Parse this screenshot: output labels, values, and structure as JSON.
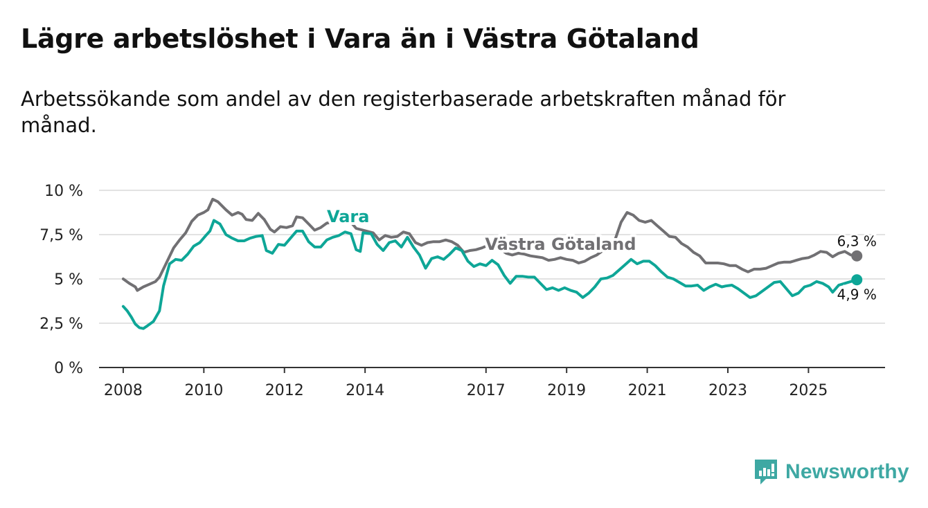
{
  "title": "Lägre arbetslöshet i Vara än i Västra Götaland",
  "subtitle": "Arbetssökande som andel av den registerbaserade arbetskraften månad för månad.",
  "brand": {
    "name": "Newsworthy",
    "color": "#3ea8a3",
    "icon": "bar-chart-logo-icon"
  },
  "chart_data": {
    "type": "line",
    "ylim": [
      0,
      10
    ],
    "xlim": [
      2007.4,
      2026.9
    ],
    "y_ticks": [
      {
        "value": 0,
        "label": "0 %"
      },
      {
        "value": 2.5,
        "label": "2,5 %"
      },
      {
        "value": 5,
        "label": "5 %"
      },
      {
        "value": 7.5,
        "label": "7,5 %"
      },
      {
        "value": 10,
        "label": "10 %"
      }
    ],
    "x_ticks": [
      {
        "value": 2008,
        "label": "2008"
      },
      {
        "value": 2010,
        "label": "2010"
      },
      {
        "value": 2012,
        "label": "2012"
      },
      {
        "value": 2014,
        "label": "2014"
      },
      {
        "value": 2017,
        "label": "2017"
      },
      {
        "value": 2019,
        "label": "2019"
      },
      {
        "value": 2021,
        "label": "2021"
      },
      {
        "value": 2023,
        "label": "2023"
      },
      {
        "value": 2025,
        "label": "2025"
      }
    ],
    "grid": true,
    "series": [
      {
        "name": "Västra Götaland",
        "color": "#717073",
        "end_label": "6,3 %",
        "label_at": [
          2018.85,
          6.65
        ],
        "points": [
          [
            2008.0,
            5.0
          ],
          [
            2008.15,
            4.75
          ],
          [
            2008.3,
            4.55
          ],
          [
            2008.35,
            4.35
          ],
          [
            2008.5,
            4.55
          ],
          [
            2008.65,
            4.7
          ],
          [
            2008.8,
            4.85
          ],
          [
            2008.9,
            5.1
          ],
          [
            2009.05,
            5.8
          ],
          [
            2009.25,
            6.75
          ],
          [
            2009.4,
            7.2
          ],
          [
            2009.55,
            7.6
          ],
          [
            2009.7,
            8.25
          ],
          [
            2009.85,
            8.6
          ],
          [
            2010.0,
            8.75
          ],
          [
            2010.1,
            8.9
          ],
          [
            2010.22,
            9.5
          ],
          [
            2010.35,
            9.35
          ],
          [
            2010.55,
            8.9
          ],
          [
            2010.7,
            8.6
          ],
          [
            2010.85,
            8.75
          ],
          [
            2010.95,
            8.65
          ],
          [
            2011.05,
            8.35
          ],
          [
            2011.2,
            8.3
          ],
          [
            2011.35,
            8.7
          ],
          [
            2011.5,
            8.35
          ],
          [
            2011.65,
            7.8
          ],
          [
            2011.75,
            7.65
          ],
          [
            2011.9,
            7.95
          ],
          [
            2012.05,
            7.9
          ],
          [
            2012.2,
            8.0
          ],
          [
            2012.3,
            8.5
          ],
          [
            2012.45,
            8.45
          ],
          [
            2012.6,
            8.1
          ],
          [
            2012.75,
            7.75
          ],
          [
            2012.9,
            7.9
          ],
          [
            2013.05,
            8.15
          ],
          [
            2013.2,
            8.2
          ],
          [
            2013.35,
            8.45
          ],
          [
            2013.5,
            8.45
          ],
          [
            2013.65,
            8.2
          ],
          [
            2013.78,
            7.85
          ],
          [
            2014.2,
            7.6
          ],
          [
            2014.35,
            7.2
          ],
          [
            2014.5,
            7.45
          ],
          [
            2014.65,
            7.35
          ],
          [
            2014.8,
            7.4
          ],
          [
            2014.95,
            7.65
          ],
          [
            2015.1,
            7.55
          ],
          [
            2015.25,
            7.05
          ],
          [
            2015.4,
            6.9
          ],
          [
            2015.55,
            7.05
          ],
          [
            2015.7,
            7.1
          ],
          [
            2015.85,
            7.1
          ],
          [
            2016.0,
            7.2
          ],
          [
            2016.15,
            7.1
          ],
          [
            2016.3,
            6.9
          ],
          [
            2016.45,
            6.5
          ],
          [
            2016.6,
            6.6
          ],
          [
            2016.75,
            6.65
          ],
          [
            2016.9,
            6.75
          ],
          [
            2017.05,
            6.9
          ],
          [
            2017.2,
            6.85
          ],
          [
            2017.35,
            6.7
          ],
          [
            2017.5,
            6.45
          ],
          [
            2017.65,
            6.35
          ],
          [
            2017.8,
            6.45
          ],
          [
            2017.95,
            6.4
          ],
          [
            2018.1,
            6.3
          ],
          [
            2018.25,
            6.25
          ],
          [
            2018.4,
            6.2
          ],
          [
            2018.55,
            6.05
          ],
          [
            2018.7,
            6.1
          ],
          [
            2018.85,
            6.2
          ],
          [
            2019.0,
            6.1
          ],
          [
            2019.15,
            6.05
          ],
          [
            2019.3,
            5.9
          ],
          [
            2019.45,
            6.0
          ],
          [
            2019.6,
            6.2
          ],
          [
            2019.75,
            6.35
          ],
          [
            2019.9,
            6.6
          ],
          [
            2020.05,
            6.9
          ],
          [
            2020.2,
            7.2
          ],
          [
            2020.35,
            8.2
          ],
          [
            2020.5,
            8.75
          ],
          [
            2020.65,
            8.6
          ],
          [
            2020.8,
            8.3
          ],
          [
            2020.95,
            8.2
          ],
          [
            2021.1,
            8.3
          ],
          [
            2021.25,
            8.0
          ],
          [
            2021.4,
            7.7
          ],
          [
            2021.55,
            7.4
          ],
          [
            2021.7,
            7.35
          ],
          [
            2021.85,
            7.0
          ],
          [
            2022.0,
            6.8
          ],
          [
            2022.15,
            6.5
          ],
          [
            2022.3,
            6.3
          ],
          [
            2022.45,
            5.9
          ],
          [
            2022.6,
            5.9
          ],
          [
            2022.75,
            5.9
          ],
          [
            2022.9,
            5.85
          ],
          [
            2023.05,
            5.75
          ],
          [
            2023.2,
            5.75
          ],
          [
            2023.35,
            5.55
          ],
          [
            2023.5,
            5.4
          ],
          [
            2023.65,
            5.55
          ],
          [
            2023.8,
            5.55
          ],
          [
            2023.95,
            5.6
          ],
          [
            2024.1,
            5.75
          ],
          [
            2024.25,
            5.9
          ],
          [
            2024.4,
            5.95
          ],
          [
            2024.55,
            5.95
          ],
          [
            2024.7,
            6.05
          ],
          [
            2024.85,
            6.15
          ],
          [
            2025.0,
            6.2
          ],
          [
            2025.15,
            6.35
          ],
          [
            2025.3,
            6.55
          ],
          [
            2025.45,
            6.5
          ],
          [
            2025.6,
            6.25
          ],
          [
            2025.75,
            6.45
          ],
          [
            2025.9,
            6.55
          ],
          [
            2026.05,
            6.35
          ],
          [
            2026.2,
            6.3
          ]
        ]
      },
      {
        "name": "Vara",
        "color": "#0ea697",
        "end_label": "4,9 %",
        "label_at": [
          2013.58,
          8.2
        ],
        "points": [
          [
            2008.0,
            3.45
          ],
          [
            2008.1,
            3.2
          ],
          [
            2008.2,
            2.85
          ],
          [
            2008.3,
            2.45
          ],
          [
            2008.4,
            2.25
          ],
          [
            2008.5,
            2.2
          ],
          [
            2008.6,
            2.35
          ],
          [
            2008.75,
            2.6
          ],
          [
            2008.9,
            3.2
          ],
          [
            2009.0,
            4.6
          ],
          [
            2009.15,
            5.85
          ],
          [
            2009.3,
            6.1
          ],
          [
            2009.45,
            6.05
          ],
          [
            2009.6,
            6.4
          ],
          [
            2009.75,
            6.85
          ],
          [
            2009.9,
            7.05
          ],
          [
            2010.05,
            7.45
          ],
          [
            2010.15,
            7.7
          ],
          [
            2010.25,
            8.3
          ],
          [
            2010.4,
            8.1
          ],
          [
            2010.55,
            7.5
          ],
          [
            2010.7,
            7.3
          ],
          [
            2010.85,
            7.15
          ],
          [
            2011.0,
            7.15
          ],
          [
            2011.15,
            7.3
          ],
          [
            2011.3,
            7.4
          ],
          [
            2011.45,
            7.45
          ],
          [
            2011.55,
            6.6
          ],
          [
            2011.7,
            6.45
          ],
          [
            2011.85,
            6.95
          ],
          [
            2012.0,
            6.9
          ],
          [
            2012.15,
            7.3
          ],
          [
            2012.3,
            7.7
          ],
          [
            2012.45,
            7.7
          ],
          [
            2012.6,
            7.1
          ],
          [
            2012.75,
            6.8
          ],
          [
            2012.9,
            6.8
          ],
          [
            2013.05,
            7.2
          ],
          [
            2013.2,
            7.35
          ],
          [
            2013.35,
            7.45
          ],
          [
            2013.5,
            7.65
          ],
          [
            2013.65,
            7.55
          ],
          [
            2013.78,
            6.65
          ],
          [
            2013.88,
            6.55
          ],
          [
            2013.95,
            7.6
          ],
          [
            2014.15,
            7.55
          ],
          [
            2014.3,
            6.95
          ],
          [
            2014.45,
            6.6
          ],
          [
            2014.6,
            7.05
          ],
          [
            2014.75,
            7.15
          ],
          [
            2014.9,
            6.8
          ],
          [
            2015.05,
            7.35
          ],
          [
            2015.2,
            6.8
          ],
          [
            2015.35,
            6.35
          ],
          [
            2015.5,
            5.6
          ],
          [
            2015.65,
            6.15
          ],
          [
            2015.8,
            6.25
          ],
          [
            2015.95,
            6.1
          ],
          [
            2016.1,
            6.4
          ],
          [
            2016.25,
            6.75
          ],
          [
            2016.4,
            6.6
          ],
          [
            2016.55,
            6.0
          ],
          [
            2016.7,
            5.7
          ],
          [
            2016.85,
            5.85
          ],
          [
            2017.0,
            5.75
          ],
          [
            2017.15,
            6.05
          ],
          [
            2017.3,
            5.8
          ],
          [
            2017.45,
            5.2
          ],
          [
            2017.6,
            4.75
          ],
          [
            2017.75,
            5.15
          ],
          [
            2017.9,
            5.15
          ],
          [
            2018.05,
            5.1
          ],
          [
            2018.2,
            5.1
          ],
          [
            2018.35,
            4.75
          ],
          [
            2018.5,
            4.4
          ],
          [
            2018.65,
            4.5
          ],
          [
            2018.8,
            4.35
          ],
          [
            2018.95,
            4.5
          ],
          [
            2019.1,
            4.35
          ],
          [
            2019.25,
            4.25
          ],
          [
            2019.4,
            3.95
          ],
          [
            2019.55,
            4.2
          ],
          [
            2019.7,
            4.55
          ],
          [
            2019.85,
            5.0
          ],
          [
            2020.0,
            5.05
          ],
          [
            2020.15,
            5.2
          ],
          [
            2020.3,
            5.5
          ],
          [
            2020.45,
            5.8
          ],
          [
            2020.6,
            6.1
          ],
          [
            2020.75,
            5.85
          ],
          [
            2020.9,
            6.0
          ],
          [
            2021.05,
            6.0
          ],
          [
            2021.2,
            5.75
          ],
          [
            2021.35,
            5.4
          ],
          [
            2021.5,
            5.1
          ],
          [
            2021.65,
            5.0
          ],
          [
            2021.8,
            4.8
          ],
          [
            2021.95,
            4.6
          ],
          [
            2022.1,
            4.6
          ],
          [
            2022.25,
            4.65
          ],
          [
            2022.4,
            4.35
          ],
          [
            2022.55,
            4.55
          ],
          [
            2022.7,
            4.7
          ],
          [
            2022.85,
            4.55
          ],
          [
            2022.95,
            4.6
          ],
          [
            2023.1,
            4.65
          ],
          [
            2023.25,
            4.45
          ],
          [
            2023.4,
            4.2
          ],
          [
            2023.55,
            3.95
          ],
          [
            2023.7,
            4.05
          ],
          [
            2023.85,
            4.3
          ],
          [
            2024.0,
            4.55
          ],
          [
            2024.15,
            4.8
          ],
          [
            2024.3,
            4.85
          ],
          [
            2024.45,
            4.45
          ],
          [
            2024.6,
            4.05
          ],
          [
            2024.75,
            4.2
          ],
          [
            2024.9,
            4.55
          ],
          [
            2025.05,
            4.65
          ],
          [
            2025.2,
            4.85
          ],
          [
            2025.35,
            4.75
          ],
          [
            2025.5,
            4.55
          ],
          [
            2025.6,
            4.25
          ],
          [
            2025.75,
            4.65
          ],
          [
            2025.9,
            4.75
          ],
          [
            2026.05,
            4.85
          ],
          [
            2026.2,
            4.95
          ]
        ]
      }
    ]
  }
}
